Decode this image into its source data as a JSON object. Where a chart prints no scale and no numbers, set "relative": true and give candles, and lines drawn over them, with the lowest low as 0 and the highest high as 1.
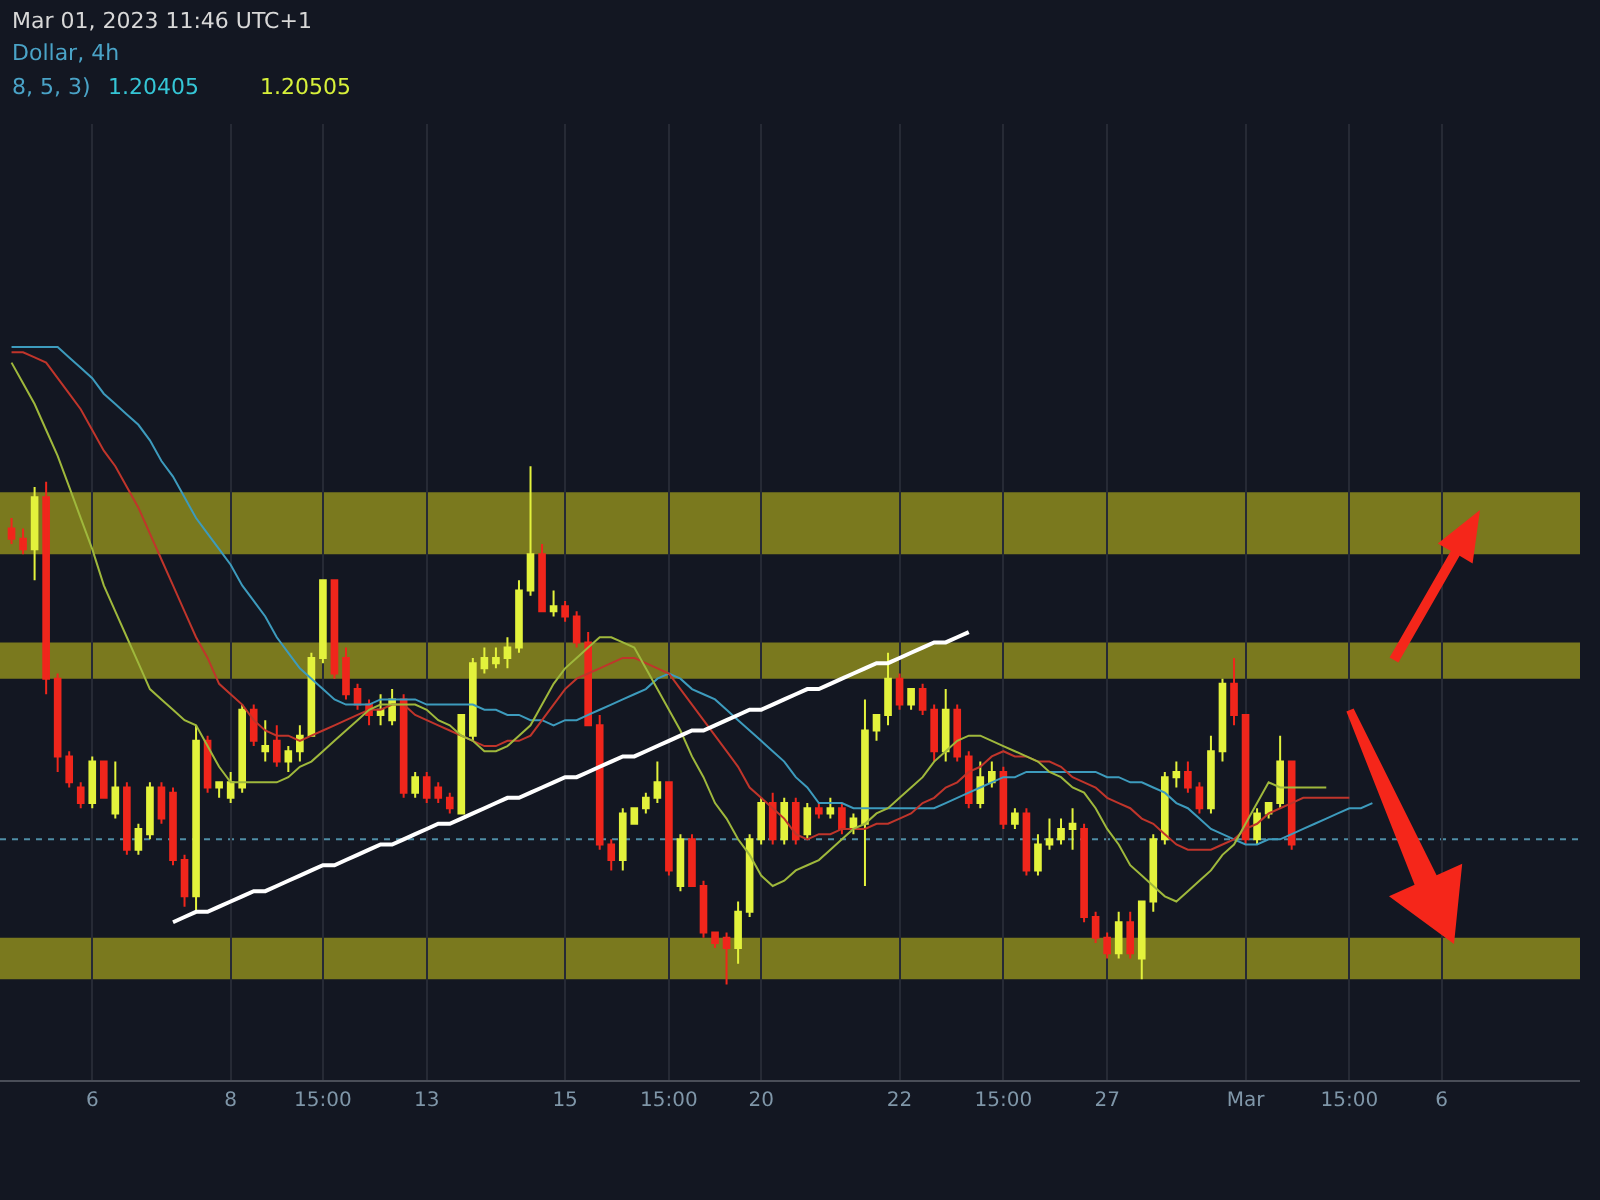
{
  "chart_data": {
    "type": "candlestick",
    "relative": true,
    "annotations": [
      "Mar 01, 2023 11:46 UTC+1",
      "Dollar, 4h",
      "8, 5, 3)",
      "1.20405",
      "1.20505"
    ],
    "categories": [
      null,
      null,
      null,
      null,
      null,
      null,
      null,
      "6",
      null,
      null,
      null,
      null,
      null,
      null,
      null,
      null,
      null,
      null,
      null,
      "8",
      null,
      null,
      null,
      null,
      null,
      null,
      null,
      "15:00",
      null,
      null,
      null,
      null,
      null,
      null,
      null,
      null,
      "13",
      null,
      null,
      null,
      null,
      null,
      null,
      null,
      null,
      null,
      null,
      null,
      "15",
      null,
      null,
      null,
      null,
      null,
      null,
      null,
      null,
      "15:00",
      null,
      null,
      null,
      null,
      null,
      null,
      null,
      "20",
      null,
      null,
      null,
      null,
      null,
      null,
      null,
      null,
      null,
      null,
      null,
      "22",
      null,
      null,
      null,
      null,
      null,
      null,
      null,
      null,
      "15:00",
      null,
      null,
      null,
      null,
      null,
      null,
      null,
      null,
      "27",
      null,
      null,
      null,
      null,
      null,
      null,
      null,
      null,
      null,
      null,
      null,
      "Mar",
      null,
      null,
      null,
      null,
      null,
      null,
      null,
      null,
      "15:00",
      null,
      null,
      null,
      null,
      null,
      null,
      null,
      "6",
      null,
      null,
      null,
      null,
      null,
      null,
      null,
      null,
      null,
      null,
      null
    ],
    "ohlc": [
      [
        0.88,
        0.9,
        0.85,
        0.86
      ],
      [
        0.86,
        0.88,
        0.83,
        0.84
      ],
      [
        0.84,
        0.96,
        0.78,
        0.94
      ],
      [
        0.94,
        0.97,
        0.56,
        0.59
      ],
      [
        0.59,
        0.6,
        0.41,
        0.44
      ],
      [
        0.44,
        0.45,
        0.38,
        0.39
      ],
      [
        0.38,
        0.39,
        0.34,
        0.35
      ],
      [
        0.35,
        0.44,
        0.34,
        0.43
      ],
      [
        0.43,
        0.43,
        0.36,
        0.36
      ],
      [
        0.33,
        0.43,
        0.32,
        0.38
      ],
      [
        0.38,
        0.39,
        0.25,
        0.26
      ],
      [
        0.26,
        0.31,
        0.25,
        0.3
      ],
      [
        0.29,
        0.39,
        0.28,
        0.38
      ],
      [
        0.38,
        0.39,
        0.31,
        0.32
      ],
      [
        0.37,
        0.38,
        0.23,
        0.24
      ],
      [
        0.24,
        0.25,
        0.15,
        0.17
      ],
      [
        0.17,
        0.5,
        0.14,
        0.47
      ],
      [
        0.47,
        0.48,
        0.37,
        0.38
      ],
      [
        0.38,
        0.39,
        0.36,
        0.39
      ],
      [
        0.36,
        0.41,
        0.35,
        0.39
      ],
      [
        0.38,
        0.54,
        0.37,
        0.53
      ],
      [
        0.53,
        0.54,
        0.46,
        0.47
      ],
      [
        0.45,
        0.51,
        0.43,
        0.46
      ],
      [
        0.47,
        0.5,
        0.42,
        0.43
      ],
      [
        0.43,
        0.46,
        0.41,
        0.45
      ],
      [
        0.45,
        0.5,
        0.43,
        0.48
      ],
      [
        0.48,
        0.64,
        0.48,
        0.63
      ],
      [
        0.63,
        0.78,
        0.62,
        0.78
      ],
      [
        0.78,
        0.78,
        0.59,
        0.6
      ],
      [
        0.63,
        0.65,
        0.55,
        0.56
      ],
      [
        0.57,
        0.58,
        0.53,
        0.54
      ],
      [
        0.54,
        0.55,
        0.5,
        0.52
      ],
      [
        0.52,
        0.56,
        0.5,
        0.53
      ],
      [
        0.51,
        0.57,
        0.5,
        0.55
      ],
      [
        0.55,
        0.56,
        0.36,
        0.37
      ],
      [
        0.37,
        0.41,
        0.36,
        0.4
      ],
      [
        0.4,
        0.41,
        0.35,
        0.36
      ],
      [
        0.38,
        0.39,
        0.35,
        0.36
      ],
      [
        0.36,
        0.37,
        0.33,
        0.34
      ],
      [
        0.33,
        0.52,
        0.33,
        0.52
      ],
      [
        0.48,
        0.63,
        0.47,
        0.62
      ],
      [
        0.61,
        0.65,
        0.6,
        0.63
      ],
      [
        0.62,
        0.65,
        0.61,
        0.63
      ],
      [
        0.63,
        0.67,
        0.61,
        0.65
      ],
      [
        0.65,
        0.78,
        0.64,
        0.76
      ],
      [
        0.76,
        1,
        0.75,
        0.83
      ],
      [
        0.83,
        0.85,
        0.72,
        0.72
      ],
      [
        0.72,
        0.76,
        0.71,
        0.73
      ],
      [
        0.73,
        0.74,
        0.7,
        0.71
      ],
      [
        0.71,
        0.72,
        0.65,
        0.66
      ],
      [
        0.66,
        0.68,
        0.5,
        0.5
      ],
      [
        0.5,
        0.52,
        0.26,
        0.27
      ],
      [
        0.27,
        0.28,
        0.22,
        0.24
      ],
      [
        0.24,
        0.34,
        0.22,
        0.33
      ],
      [
        0.31,
        0.34,
        0.31,
        0.34
      ],
      [
        0.34,
        0.37,
        0.33,
        0.36
      ],
      [
        0.36,
        0.43,
        0.35,
        0.39
      ],
      [
        0.39,
        0.39,
        0.21,
        0.22
      ],
      [
        0.19,
        0.29,
        0.18,
        0.28
      ],
      [
        0.28,
        0.29,
        0.19,
        0.19
      ],
      [
        0.19,
        0.2,
        0.09,
        0.1
      ],
      [
        0.1,
        0.1,
        0.07,
        0.08
      ],
      [
        0.09,
        0.1,
        0,
        0.07
      ],
      [
        0.07,
        0.16,
        0.04,
        0.14
      ],
      [
        0.14,
        0.29,
        0.13,
        0.28
      ],
      [
        0.28,
        0.36,
        0.27,
        0.35
      ],
      [
        0.35,
        0.37,
        0.27,
        0.28
      ],
      [
        0.28,
        0.36,
        0.27,
        0.35
      ],
      [
        0.35,
        0.36,
        0.27,
        0.28
      ],
      [
        0.29,
        0.35,
        0.28,
        0.34
      ],
      [
        0.34,
        0.35,
        0.32,
        0.33
      ],
      [
        0.33,
        0.36,
        0.32,
        0.34
      ],
      [
        0.34,
        0.35,
        0.29,
        0.3
      ],
      [
        0.3,
        0.33,
        0.29,
        0.32
      ],
      [
        0.31,
        0.55,
        0.19,
        0.49
      ],
      [
        0.49,
        0.52,
        0.47,
        0.52
      ],
      [
        0.52,
        0.64,
        0.5,
        0.59
      ],
      [
        0.59,
        0.6,
        0.53,
        0.54
      ],
      [
        0.54,
        0.57,
        0.53,
        0.57
      ],
      [
        0.57,
        0.58,
        0.52,
        0.53
      ],
      [
        0.53,
        0.54,
        0.43,
        0.45
      ],
      [
        0.45,
        0.57,
        0.43,
        0.53
      ],
      [
        0.53,
        0.54,
        0.43,
        0.44
      ],
      [
        0.44,
        0.45,
        0.34,
        0.35
      ],
      [
        0.35,
        0.43,
        0.34,
        0.4
      ],
      [
        0.39,
        0.43,
        0.38,
        0.41
      ],
      [
        0.41,
        0.42,
        0.3,
        0.31
      ],
      [
        0.31,
        0.34,
        0.3,
        0.33
      ],
      [
        0.33,
        0.34,
        0.21,
        0.22
      ],
      [
        0.22,
        0.29,
        0.21,
        0.27
      ],
      [
        0.27,
        0.32,
        0.26,
        0.28
      ],
      [
        0.28,
        0.32,
        0.27,
        0.3
      ],
      [
        0.3,
        0.34,
        0.26,
        0.31
      ],
      [
        0.3,
        0.31,
        0.12,
        0.13
      ],
      [
        0.13,
        0.14,
        0.08,
        0.09
      ],
      [
        0.09,
        0.1,
        0.05,
        0.06
      ],
      [
        0.06,
        0.14,
        0.05,
        0.12
      ],
      [
        0.12,
        0.14,
        0.05,
        0.06
      ],
      [
        0.05,
        0.16,
        0.01,
        0.16
      ],
      [
        0.16,
        0.29,
        0.14,
        0.28
      ],
      [
        0.28,
        0.41,
        0.27,
        0.4
      ],
      [
        0.4,
        0.43,
        0.38,
        0.41
      ],
      [
        0.41,
        0.43,
        0.37,
        0.38
      ],
      [
        0.38,
        0.39,
        0.33,
        0.34
      ],
      [
        0.34,
        0.48,
        0.33,
        0.45
      ],
      [
        0.45,
        0.59,
        0.43,
        0.58
      ],
      [
        0.58,
        0.63,
        0.5,
        0.52
      ],
      [
        0.52,
        0.52,
        0.27,
        0.28
      ],
      [
        0.28,
        0.34,
        0.27,
        0.33
      ],
      [
        0.33,
        0.35,
        0.32,
        0.35
      ],
      [
        0.35,
        0.48,
        0.34,
        0.43
      ],
      [
        0.43,
        0.43,
        0.26,
        0.27
      ],
      null,
      null,
      null,
      null,
      null,
      null,
      null,
      null,
      null,
      null,
      null,
      null,
      null,
      null,
      null,
      null,
      null,
      null,
      null,
      null,
      null,
      null,
      null,
      null
    ],
    "colors": [
      "#f0261c",
      "#f0261c",
      "#e3f23c",
      "#f0261c",
      "#f0261c",
      "#f0261c",
      "#f0261c",
      "#e3f23c",
      "#f0261c",
      "#e3f23c",
      "#f0261c",
      "#e3f23c",
      "#e3f23c",
      "#f0261c",
      "#f0261c",
      "#f0261c",
      "#e3f23c",
      "#f0261c",
      "#e3f23c",
      "#e3f23c",
      "#e3f23c",
      "#f0261c",
      "#e3f23c",
      "#f0261c",
      "#e3f23c",
      "#e3f23c",
      "#e3f23c",
      "#e3f23c",
      "#f0261c",
      "#f0261c",
      "#f0261c",
      "#f0261c",
      "#e3f23c",
      "#e3f23c",
      "#f0261c",
      "#e3f23c",
      "#f0261c",
      "#f0261c",
      "#f0261c",
      "#e3f23c",
      "#e3f23c",
      "#e3f23c",
      "#e3f23c",
      "#e3f23c",
      "#e3f23c",
      "#e3f23c",
      "#f0261c",
      "#e3f23c",
      "#f0261c",
      "#f0261c",
      "#f0261c",
      "#f0261c",
      "#f0261c",
      "#e3f23c",
      "#e3f23c",
      "#e3f23c",
      "#e3f23c",
      "#f0261c",
      "#e3f23c",
      "#f0261c",
      "#f0261c",
      "#f0261c",
      "#f0261c",
      "#e3f23c",
      "#e3f23c",
      "#e3f23c",
      "#f0261c",
      "#e3f23c",
      "#f0261c",
      "#e3f23c",
      "#f0261c",
      "#e3f23c",
      "#f0261c",
      "#e3f23c",
      "#e3f23c",
      "#e3f23c",
      "#e3f23c",
      "#f0261c",
      "#e3f23c",
      "#f0261c",
      "#f0261c",
      "#e3f23c",
      "#f0261c",
      "#f0261c",
      "#e3f23c",
      "#e3f23c",
      "#f0261c",
      "#e3f23c",
      "#f0261c",
      "#e3f23c",
      "#e3f23c",
      "#e3f23c",
      "#e3f23c",
      "#f0261c",
      "#f0261c",
      "#f0261c",
      "#e3f23c",
      "#f0261c",
      "#e3f23c",
      "#e3f23c",
      "#e3f23c",
      "#e3f23c",
      "#f0261c",
      "#f0261c",
      "#e3f23c",
      "#e3f23c",
      "#f0261c",
      "#f0261c",
      "#e3f23c",
      "#e3f23c",
      "#e3f23c",
      "#f0261c",
      null,
      null,
      null,
      null,
      null,
      null,
      null,
      null,
      null,
      null,
      null,
      null,
      null,
      null,
      null,
      null,
      null,
      null,
      null,
      null,
      null,
      null,
      null,
      null
    ],
    "series": [
      {
        "type": "line",
        "color": "#3d9bbd",
        "values": [
          1.23,
          1.23,
          1.23,
          1.23,
          1.23,
          1.21,
          1.19,
          1.17,
          1.14,
          1.12,
          1.1,
          1.08,
          1.05,
          1.01,
          0.98,
          0.94,
          0.9,
          0.87,
          0.84,
          0.81,
          0.77,
          0.74,
          0.71,
          0.67,
          0.64,
          0.61,
          0.59,
          0.57,
          0.55,
          0.54,
          0.54,
          0.54,
          0.55,
          0.55,
          0.55,
          0.55,
          0.54,
          0.54,
          0.54,
          0.54,
          0.54,
          0.53,
          0.53,
          0.52,
          0.52,
          0.51,
          0.51,
          0.5,
          0.51,
          0.51,
          0.52,
          0.53,
          0.54,
          0.55,
          0.56,
          0.57,
          0.59,
          0.6,
          0.59,
          0.57,
          0.56,
          0.55,
          0.53,
          0.51,
          0.49,
          0.47,
          0.45,
          0.43,
          0.4,
          0.38,
          0.35,
          0.35,
          0.35,
          0.34,
          0.34,
          0.34,
          0.34,
          0.34,
          0.34,
          0.34,
          0.34,
          0.35,
          0.36,
          0.37,
          0.38,
          0.39,
          0.4,
          0.4,
          0.41,
          0.41,
          0.41,
          0.41,
          0.41,
          0.41,
          0.41,
          0.4,
          0.4,
          0.39,
          0.39,
          0.38,
          0.37,
          0.35,
          0.34,
          0.32,
          0.3,
          0.29,
          0.28,
          0.27,
          0.27,
          0.28,
          0.28,
          0.29,
          0.3,
          0.31,
          0.32,
          0.33,
          0.34,
          0.34,
          0.35,
          null,
          null,
          null,
          null,
          null,
          null,
          null,
          null,
          null,
          null,
          null,
          null,
          null,
          null,
          null,
          null,
          null
        ]
      },
      {
        "type": "line",
        "color": "#c0352b",
        "values": [
          1.22,
          1.22,
          1.21,
          1.2,
          1.17,
          1.14,
          1.11,
          1.07,
          1.03,
          1,
          0.96,
          0.92,
          0.87,
          0.82,
          0.77,
          0.72,
          0.67,
          0.63,
          0.58,
          0.56,
          0.54,
          0.51,
          0.49,
          0.48,
          0.48,
          0.47,
          0.48,
          0.49,
          0.5,
          0.51,
          0.52,
          0.53,
          0.53,
          0.54,
          0.54,
          0.52,
          0.51,
          0.5,
          0.49,
          0.48,
          0.47,
          0.46,
          0.46,
          0.47,
          0.47,
          0.48,
          0.51,
          0.54,
          0.57,
          0.59,
          0.6,
          0.61,
          0.62,
          0.63,
          0.63,
          0.62,
          0.61,
          0.6,
          0.57,
          0.54,
          0.51,
          0.48,
          0.45,
          0.42,
          0.38,
          0.36,
          0.34,
          0.32,
          0.29,
          0.28,
          0.29,
          0.29,
          0.3,
          0.3,
          0.3,
          0.31,
          0.31,
          0.32,
          0.33,
          0.35,
          0.36,
          0.38,
          0.39,
          0.41,
          0.42,
          0.44,
          0.45,
          0.44,
          0.44,
          0.43,
          0.43,
          0.42,
          0.4,
          0.39,
          0.38,
          0.36,
          0.35,
          0.34,
          0.32,
          0.31,
          0.29,
          0.27,
          0.26,
          0.26,
          0.26,
          0.27,
          0.28,
          0.3,
          0.31,
          0.33,
          0.34,
          0.35,
          0.36,
          0.36,
          0.36,
          0.36,
          0.36,
          null,
          null,
          null,
          null,
          null,
          null,
          null,
          null,
          null,
          null,
          null,
          null,
          null,
          null,
          null,
          null,
          null,
          null,
          null
        ]
      },
      {
        "type": "line",
        "color": "#9fb83c",
        "values": [
          1.2,
          1.16,
          1.12,
          1.07,
          1.02,
          0.96,
          0.9,
          0.84,
          0.77,
          0.72,
          0.67,
          0.62,
          0.57,
          0.55,
          0.53,
          0.51,
          0.5,
          0.46,
          0.42,
          0.39,
          0.39,
          0.39,
          0.39,
          0.39,
          0.4,
          0.42,
          0.43,
          0.45,
          0.47,
          0.49,
          0.51,
          0.53,
          0.54,
          0.54,
          0.54,
          0.54,
          0.53,
          0.51,
          0.5,
          0.48,
          0.47,
          0.45,
          0.45,
          0.46,
          0.48,
          0.5,
          0.54,
          0.58,
          0.61,
          0.63,
          0.65,
          0.67,
          0.67,
          0.66,
          0.65,
          0.61,
          0.57,
          0.53,
          0.49,
          0.44,
          0.4,
          0.35,
          0.32,
          0.28,
          0.25,
          0.21,
          0.19,
          0.2,
          0.22,
          0.23,
          0.24,
          0.26,
          0.28,
          0.3,
          0.31,
          0.33,
          0.34,
          0.36,
          0.38,
          0.4,
          0.43,
          0.45,
          0.47,
          0.48,
          0.48,
          0.47,
          0.46,
          0.45,
          0.44,
          0.43,
          0.41,
          0.4,
          0.38,
          0.37,
          0.34,
          0.3,
          0.27,
          0.23,
          0.21,
          0.19,
          0.17,
          0.16,
          0.18,
          0.2,
          0.22,
          0.25,
          0.27,
          0.31,
          0.35,
          0.39,
          0.38,
          0.38,
          0.38,
          0.38,
          0.38,
          null,
          null,
          null,
          null,
          null,
          null,
          null,
          null,
          null,
          null,
          null,
          null,
          null,
          null,
          null,
          null,
          null,
          null,
          null,
          null,
          null
        ]
      },
      {
        "type": "line",
        "color": "#ffffff",
        "values": [
          null,
          null,
          null,
          null,
          null,
          null,
          null,
          null,
          null,
          null,
          null,
          null,
          null,
          null,
          0.12,
          0.13,
          0.14,
          0.14,
          0.15,
          0.16,
          0.17,
          0.18,
          0.18,
          0.19,
          0.2,
          0.21,
          0.22,
          0.23,
          0.23,
          0.24,
          0.25,
          0.26,
          0.27,
          0.27,
          0.28,
          0.29,
          0.3,
          0.31,
          0.31,
          0.32,
          0.33,
          0.34,
          0.35,
          0.36,
          0.36,
          0.37,
          0.38,
          0.39,
          0.4,
          0.4,
          0.41,
          0.42,
          0.43,
          0.44,
          0.44,
          0.45,
          0.46,
          0.47,
          0.48,
          0.49,
          0.49,
          0.5,
          0.51,
          0.52,
          0.53,
          0.53,
          0.54,
          0.55,
          0.56,
          0.57,
          0.57,
          0.58,
          0.59,
          0.6,
          0.61,
          0.62,
          0.62,
          0.63,
          0.64,
          0.65,
          0.66,
          0.66,
          0.67,
          0.68,
          null,
          null,
          null,
          null,
          null,
          null,
          null,
          null,
          null,
          null,
          null,
          null,
          null,
          null,
          null,
          null,
          null,
          null,
          null,
          null,
          null,
          null,
          null,
          null,
          null,
          null,
          null,
          null,
          null,
          null,
          null,
          null,
          null,
          null,
          null,
          null,
          null,
          null,
          null,
          null,
          null,
          null,
          null,
          null,
          null,
          null,
          null,
          null,
          null,
          null,
          null,
          null
        ]
      }
    ],
    "bands": [
      {
        "axis": "y",
        "from": 0.83,
        "to": 0.95,
        "color": "#a6a41c"
      },
      {
        "axis": "y",
        "from": 0.59,
        "to": 0.66,
        "color": "#a6a41c"
      },
      {
        "axis": "y",
        "from": 0.01,
        "to": 0.09,
        "color": "#a6a41c"
      }
    ],
    "ref_lines": [
      {
        "axis": "y",
        "value": 0.28,
        "color": "#4f8ea6",
        "line_style": "dotted"
      }
    ],
    "grid": "x",
    "tick_labels": "x"
  }
}
